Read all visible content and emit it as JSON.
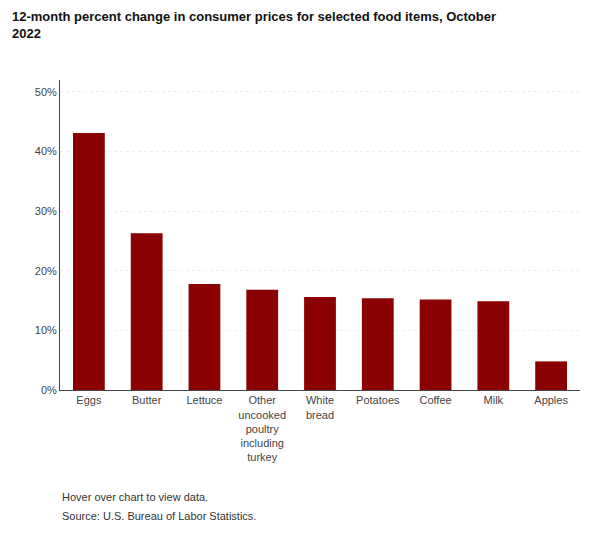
{
  "chart_data": {
    "type": "bar",
    "title": "12-month percent change in consumer prices for selected food items, October\n2022",
    "categories": [
      "Eggs",
      "Butter",
      "Lettuce",
      "Other\nuncooked\npoultry\nincluding\nturkey",
      "White\nbread",
      "Potatoes",
      "Coffee",
      "Milk",
      "Apples"
    ],
    "values": [
      43.1,
      26.3,
      17.8,
      16.8,
      15.6,
      15.4,
      15.2,
      14.9,
      4.8
    ],
    "color": "#8B0000",
    "ylim": [
      0,
      52
    ],
    "yticks": [
      {
        "value": 0,
        "label": "0%"
      },
      {
        "value": 10,
        "label": "10%"
      },
      {
        "value": 20,
        "label": "20%"
      },
      {
        "value": 30,
        "label": "30%"
      },
      {
        "value": 40,
        "label": "40%"
      },
      {
        "value": 50,
        "label": "50%"
      }
    ],
    "grid": true,
    "annotations": [
      "Hover over chart to view data.",
      "Source: U.S. Bureau of Labor Statistics."
    ]
  }
}
